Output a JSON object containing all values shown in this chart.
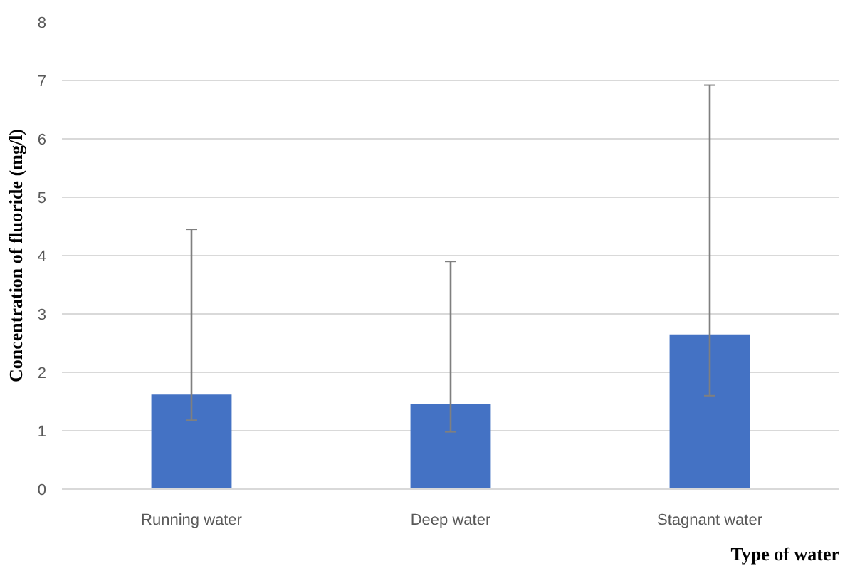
{
  "chart_data": {
    "type": "bar",
    "xlabel": "Type of water",
    "ylabel": "Concentration of fluoride (mg/l)",
    "categories": [
      "Running water",
      "Deep water",
      "Stagnant water"
    ],
    "values": [
      1.62,
      1.45,
      2.65
    ],
    "errors": [
      [
        1.18,
        4.45
      ],
      [
        0.98,
        3.9
      ],
      [
        1.6,
        6.92
      ]
    ],
    "color": "#4472c4",
    "ylim": [
      0,
      8
    ],
    "yticks": [
      0,
      1,
      2,
      3,
      4,
      5,
      6,
      7,
      8
    ],
    "grid": "y"
  }
}
